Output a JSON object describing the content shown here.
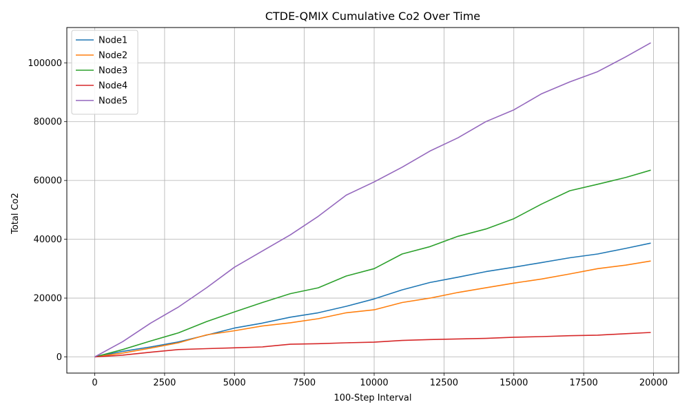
{
  "chart_data": {
    "type": "line",
    "title": "CTDE-QMIX Cumulative Co2 Over Time",
    "xlabel": "100-Step Interval",
    "ylabel": "Total Co2",
    "xlim": [
      -1000,
      20900
    ],
    "ylim": [
      -5500,
      112000
    ],
    "xticks": [
      0,
      2500,
      5000,
      7500,
      10000,
      12500,
      15000,
      17500,
      20000
    ],
    "yticks": [
      0,
      20000,
      40000,
      60000,
      80000,
      100000
    ],
    "grid": true,
    "legend": "top-left",
    "x": [
      0,
      1000,
      2000,
      3000,
      4000,
      5000,
      6000,
      7000,
      8000,
      9000,
      10000,
      11000,
      12000,
      13000,
      14000,
      15000,
      16000,
      17000,
      18000,
      19000,
      19900
    ],
    "series": [
      {
        "name": "Node1",
        "color": "#1f77b4",
        "values": [
          0,
          1900,
          3400,
          5100,
          7400,
          9800,
          11500,
          13500,
          15000,
          17200,
          19700,
          22800,
          25300,
          27100,
          29000,
          30500,
          32100,
          33700,
          35000,
          36900,
          38700
        ]
      },
      {
        "name": "Node2",
        "color": "#ff7f0e",
        "values": [
          0,
          1300,
          3000,
          4800,
          7500,
          8900,
          10500,
          11600,
          13000,
          15000,
          16000,
          18500,
          20000,
          21900,
          23500,
          25100,
          26500,
          28200,
          30000,
          31200,
          32600
        ]
      },
      {
        "name": "Node3",
        "color": "#2ca02c",
        "values": [
          0,
          2500,
          5400,
          8200,
          12000,
          15300,
          18500,
          21500,
          23500,
          27500,
          30000,
          35000,
          37500,
          41000,
          43500,
          47000,
          52000,
          56500,
          58700,
          61000,
          63500
        ]
      },
      {
        "name": "Node4",
        "color": "#d62728",
        "values": [
          0,
          600,
          1600,
          2500,
          2800,
          3100,
          3400,
          4300,
          4500,
          4800,
          5000,
          5600,
          5900,
          6100,
          6300,
          6700,
          6900,
          7200,
          7400,
          7900,
          8300
        ]
      },
      {
        "name": "Node5",
        "color": "#9467bd",
        "values": [
          0,
          5200,
          11500,
          17000,
          23500,
          30500,
          36000,
          41500,
          47800,
          55000,
          59500,
          64500,
          70000,
          74500,
          80000,
          84000,
          89500,
          93500,
          97000,
          102000,
          106800
        ]
      }
    ]
  }
}
